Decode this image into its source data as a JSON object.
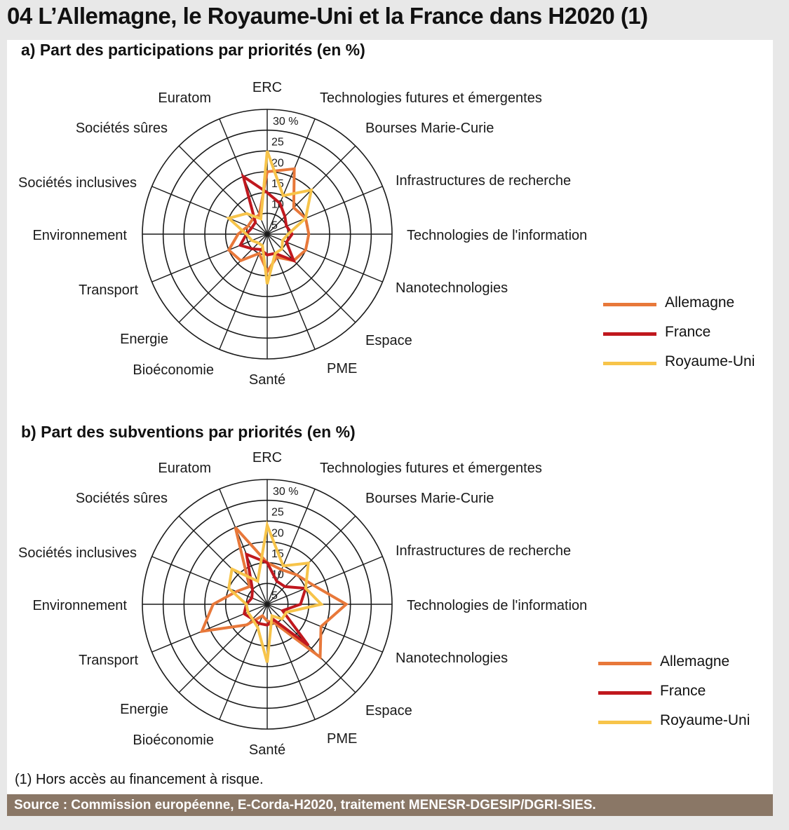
{
  "title": "04   L’Allemagne, le Royaume-Uni et la France dans H2020 (1)",
  "axes": [
    "ERC",
    "Technologies futures et émergentes",
    "Bourses Marie-Curie",
    "Infrastructures de recherche",
    "Technologies de l'information",
    "Nanotechnologies",
    "Espace",
    "PME",
    "Santé",
    "Bioéconomie",
    "Energie",
    "Transport",
    "Environnement",
    "Sociétés inclusives",
    "Sociétés sûres",
    "Euratom"
  ],
  "tick_labels": [
    "5",
    "10",
    "15",
    "20",
    "25",
    "30 %"
  ],
  "series_colors": {
    "Allemagne": "#e8783a",
    "France": "#c0181e",
    "Royaume-Uni": "#f7c44a"
  },
  "legend": [
    "Allemagne",
    "France",
    "Royaume-Uni"
  ],
  "chart_data": [
    {
      "type": "radar",
      "title": "a)  Part des participations par priorités (en %)",
      "categories": [
        "ERC",
        "Technologies futures et émergentes",
        "Bourses Marie-Curie",
        "Infrastructures de recherche",
        "Technologies de l'information",
        "Nanotechnologies",
        "Espace",
        "PME",
        "Santé",
        "Bioéconomie",
        "Energie",
        "Transport",
        "Environnement",
        "Sociétés inclusives",
        "Sociétés sûres",
        "Euratom"
      ],
      "rlim": [
        0,
        30
      ],
      "ticks": [
        5,
        10,
        15,
        20,
        25,
        30
      ],
      "series": [
        {
          "name": "Allemagne",
          "values": [
            15,
            17,
            9,
            10,
            10,
            10,
            9,
            6,
            9,
            5,
            9,
            10,
            7,
            5,
            5,
            5
          ]
        },
        {
          "name": "France",
          "values": [
            10,
            8,
            6,
            5,
            6,
            5,
            9,
            5,
            5,
            4,
            5,
            7,
            5,
            4,
            4,
            15
          ]
        },
        {
          "name": "Royaume-Uni",
          "values": [
            20,
            10,
            15,
            10,
            5,
            4,
            5,
            5,
            12,
            3,
            3,
            4,
            5,
            10,
            7,
            4
          ]
        }
      ]
    },
    {
      "type": "radar",
      "title": "b) Part des subventions par priorités (en %)",
      "categories": [
        "ERC",
        "Technologies futures et émergentes",
        "Bourses Marie-Curie",
        "Infrastructures de recherche",
        "Technologies de l'information",
        "Nanotechnologies",
        "Espace",
        "PME",
        "Santé",
        "Bioéconomie",
        "Energie",
        "Transport",
        "Environnement",
        "Sociétés inclusives",
        "Sociétés sûres",
        "Euratom"
      ],
      "rlim": [
        0,
        30
      ],
      "ticks": [
        5,
        10,
        15,
        20,
        25,
        30
      ],
      "series": [
        {
          "name": "Allemagne",
          "values": [
            10,
            9,
            10,
            12,
            19,
            14,
            18,
            5,
            4,
            3,
            7,
            17,
            13,
            8,
            6,
            20
          ]
        },
        {
          "name": "France",
          "values": [
            10,
            6,
            6,
            10,
            8,
            4,
            14,
            4,
            5,
            5,
            5,
            6,
            5,
            4,
            5,
            13
          ]
        },
        {
          "name": "Royaume-Uni",
          "values": [
            19,
            10,
            14,
            10,
            13,
            5,
            5,
            3,
            14,
            6,
            5,
            5,
            5,
            10,
            12,
            6
          ]
        }
      ]
    }
  ],
  "footnote": "(1) Hors accès au financement à risque.",
  "source": "Source : Commission européenne, E-Corda-H2020, traitement MENESR-DGESIP/DGRI-SIES."
}
